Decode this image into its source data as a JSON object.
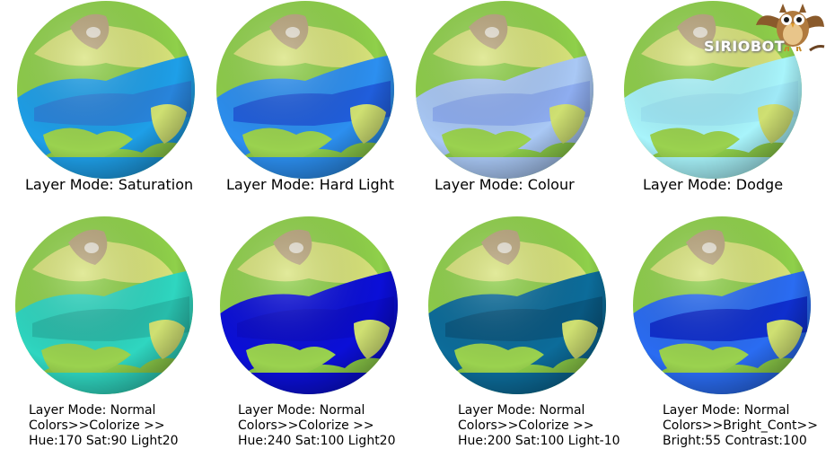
{
  "panels": [
    {
      "caption": [
        "Layer Mode: Saturation"
      ],
      "ocean": "#1e9fe8",
      "oceanDeep": "#2a7fd8"
    },
    {
      "caption": [
        "Layer Mode: Hard Light"
      ],
      "ocean": "#2c8ff0",
      "oceanDeep": "#1e56d8"
    },
    {
      "caption": [
        "Layer Mode: Colour"
      ],
      "ocean": "#a9c8f5",
      "oceanDeep": "#8aa8ef"
    },
    {
      "caption": [
        "Layer Mode: Dodge"
      ],
      "ocean": "#a8f4fb",
      "oceanDeep": "#9ee6f6"
    },
    {
      "caption": [
        "Layer Mode: Normal",
        "Colors>>Colorize >>",
        "Hue:170 Sat:90 Light20"
      ],
      "ocean": "#2fd6c0",
      "oceanDeep": "#27b7a6"
    },
    {
      "caption": [
        "Layer Mode: Normal",
        "Colors>>Colorize >>",
        "Hue:240 Sat:100 Light20"
      ],
      "ocean": "#0b0fd8",
      "oceanDeep": "#0a0ac8"
    },
    {
      "caption": [
        "Layer Mode: Normal",
        "Colors>>Colorize >>",
        "Hue:200 Sat:100 Light-10"
      ],
      "ocean": "#0c6c9a",
      "oceanDeep": "#09557d"
    },
    {
      "caption": [
        "Layer Mode: Normal",
        "Colors>>Bright_Cont>>",
        "Bright:55 Contrast:100"
      ],
      "ocean": "#2a6cf2",
      "oceanDeep": "#0b24c8"
    }
  ],
  "logo": {
    "text": "SIRIOBOT"
  }
}
